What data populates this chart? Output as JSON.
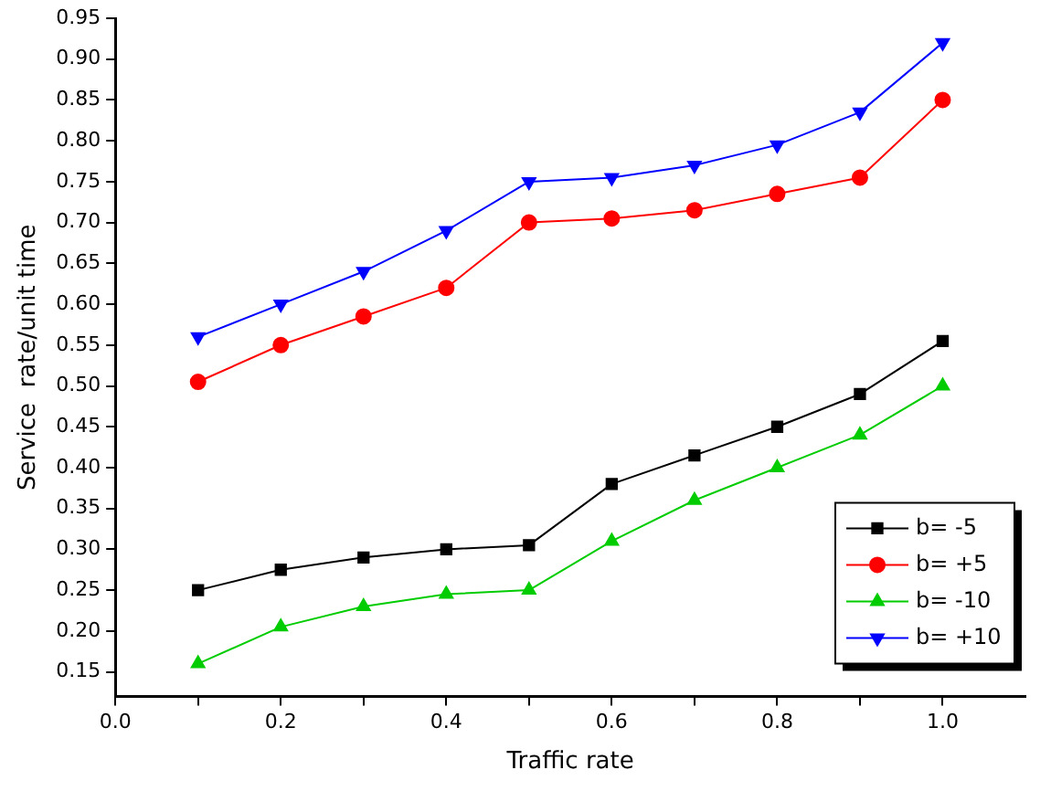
{
  "chart_data": {
    "type": "line",
    "xlabel": "Traffic rate",
    "ylabel": "Service  rate/unit time",
    "x": [
      0.1,
      0.2,
      0.3,
      0.4,
      0.5,
      0.6,
      0.7,
      0.8,
      0.9,
      1.0
    ],
    "series": [
      {
        "name": "b= -5",
        "color": "#000000",
        "marker": "square",
        "values": [
          0.25,
          0.275,
          0.29,
          0.3,
          0.305,
          0.38,
          0.415,
          0.45,
          0.49,
          0.555
        ]
      },
      {
        "name": "b= +5",
        "color": "#ff0000",
        "marker": "circle",
        "values": [
          0.505,
          0.55,
          0.585,
          0.62,
          0.7,
          0.705,
          0.715,
          0.735,
          0.755,
          0.85
        ]
      },
      {
        "name": "b= -10",
        "color": "#00cc00",
        "marker": "triangle",
        "values": [
          0.16,
          0.205,
          0.23,
          0.245,
          0.25,
          0.31,
          0.36,
          0.4,
          0.44,
          0.5
        ]
      },
      {
        "name": "b= +10",
        "color": "#0000ff",
        "marker": "triangle_down",
        "values": [
          0.56,
          0.6,
          0.64,
          0.69,
          0.75,
          0.755,
          0.77,
          0.795,
          0.835,
          0.92
        ]
      }
    ],
    "xlim": [
      0,
      1.1
    ],
    "ylim": [
      0.12,
      0.95
    ],
    "xticks": [
      {
        "value": 0,
        "label": "0.0"
      },
      {
        "value": 0.1,
        "label": null
      },
      {
        "value": 0.2,
        "label": "0.2"
      },
      {
        "value": 0.3,
        "label": null
      },
      {
        "value": 0.4,
        "label": "0.4"
      },
      {
        "value": 0.5,
        "label": null
      },
      {
        "value": 0.6,
        "label": "0.6"
      },
      {
        "value": 0.7,
        "label": null
      },
      {
        "value": 0.8,
        "label": "0.8"
      },
      {
        "value": 0.9,
        "label": null
      },
      {
        "value": 1.0,
        "label": "1.0"
      }
    ],
    "yticks": [
      {
        "value": 0.15,
        "label": "0.15"
      },
      {
        "value": 0.2,
        "label": "0.20"
      },
      {
        "value": 0.25,
        "label": "0.25"
      },
      {
        "value": 0.3,
        "label": "0.30"
      },
      {
        "value": 0.35,
        "label": "0.35"
      },
      {
        "value": 0.4,
        "label": "0.40"
      },
      {
        "value": 0.45,
        "label": "0.45"
      },
      {
        "value": 0.5,
        "label": "0.50"
      },
      {
        "value": 0.55,
        "label": "0.55"
      },
      {
        "value": 0.6,
        "label": "0.60"
      },
      {
        "value": 0.65,
        "label": "0.65"
      },
      {
        "value": 0.7,
        "label": "0.70"
      },
      {
        "value": 0.75,
        "label": "0.75"
      },
      {
        "value": 0.8,
        "label": "0.80"
      },
      {
        "value": 0.85,
        "label": "0.85"
      },
      {
        "value": 0.9,
        "label": "0.90"
      },
      {
        "value": 0.95,
        "label": "0.95"
      }
    ],
    "grid": false,
    "legend": "bottom right",
    "line_style": "solid"
  }
}
